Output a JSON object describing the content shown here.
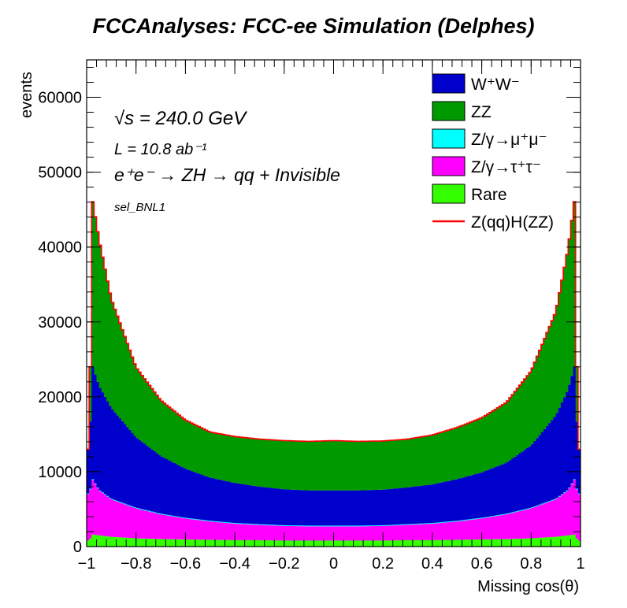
{
  "chart_data": {
    "type": "area",
    "title": "FCCAnalyses: FCC-ee Simulation (Delphes)",
    "xlabel": "Missing cos(θ)",
    "ylabel": "events",
    "xlim": [
      -1,
      1
    ],
    "ylim": [
      0,
      65000
    ],
    "x_ticks": [
      "−1",
      "−0.8",
      "−0.6",
      "−0.4",
      "−0.2",
      "0",
      "0.2",
      "0.4",
      "0.6",
      "0.8",
      "1"
    ],
    "y_ticks": [
      "0",
      "10000",
      "20000",
      "30000",
      "40000",
      "50000",
      "60000"
    ],
    "stacked": true,
    "legend_position": "top-right",
    "annotations": {
      "sqrt_s": "√s = 240.0 GeV",
      "lumi": "L = 10.8 ab⁻¹",
      "process": "e⁺e⁻ → ZH → qq + Invisible",
      "selection": "sel_BNL1"
    },
    "x": [
      -0.99,
      -0.975,
      -0.95,
      -0.9,
      -0.8,
      -0.7,
      -0.6,
      -0.5,
      -0.4,
      -0.3,
      -0.2,
      -0.1,
      0.0,
      0.1,
      0.2,
      0.3,
      0.4,
      0.5,
      0.6,
      0.7,
      0.8,
      0.9,
      0.95,
      0.975,
      0.99
    ],
    "series": [
      {
        "name": "Rare",
        "color": "#33ff00",
        "values": [
          800,
          1600,
          1500,
          1300,
          1100,
          1000,
          950,
          900,
          850,
          850,
          800,
          800,
          800,
          800,
          800,
          850,
          850,
          900,
          950,
          1000,
          1100,
          1300,
          1500,
          1600,
          800
        ]
      },
      {
        "name": "Z/γ→τ⁺τ⁻",
        "color": "#ff00ff",
        "values": [
          6200,
          7300,
          6000,
          5000,
          4000,
          3300,
          2800,
          2450,
          2200,
          2050,
          1950,
          1900,
          1900,
          1900,
          1950,
          2050,
          2200,
          2450,
          2800,
          3300,
          4000,
          5000,
          6000,
          7300,
          6200
        ]
      },
      {
        "name": "Z/γ→μ⁺μ⁻",
        "color": "#00ffff",
        "values": [
          100,
          100,
          100,
          100,
          100,
          100,
          100,
          100,
          100,
          100,
          100,
          100,
          100,
          100,
          100,
          100,
          100,
          100,
          100,
          100,
          100,
          100,
          100,
          100,
          100
        ]
      },
      {
        "name": "W⁺W⁻",
        "color": "#0000cc",
        "values": [
          5900,
          15000,
          13900,
          12100,
          9400,
          7700,
          6550,
          5750,
          5350,
          5000,
          4800,
          4700,
          4700,
          4700,
          4750,
          4900,
          5150,
          5550,
          6050,
          6800,
          8300,
          11100,
          13400,
          15000,
          5900
        ]
      },
      {
        "name": "ZZ",
        "color": "#009900",
        "values": [
          0,
          22000,
          19500,
          14500,
          9300,
          7400,
          6450,
          6050,
          6150,
          6300,
          6450,
          6500,
          6600,
          6500,
          6450,
          6400,
          6550,
          6850,
          7250,
          8000,
          9900,
          13800,
          18800,
          22000,
          0
        ]
      },
      {
        "name": "Z(qq)H(ZZ)",
        "color": "#ff0000",
        "values": [
          0,
          50,
          50,
          50,
          50,
          50,
          50,
          50,
          50,
          50,
          50,
          50,
          50,
          50,
          50,
          50,
          50,
          50,
          50,
          50,
          50,
          50,
          50,
          50,
          0
        ]
      }
    ],
    "legend_entries": [
      "W⁺W⁻",
      "ZZ",
      "Z/γ→μ⁺μ⁻",
      "Z/γ→τ⁺τ⁻",
      "Rare",
      "Z(qq)H(ZZ)"
    ]
  }
}
